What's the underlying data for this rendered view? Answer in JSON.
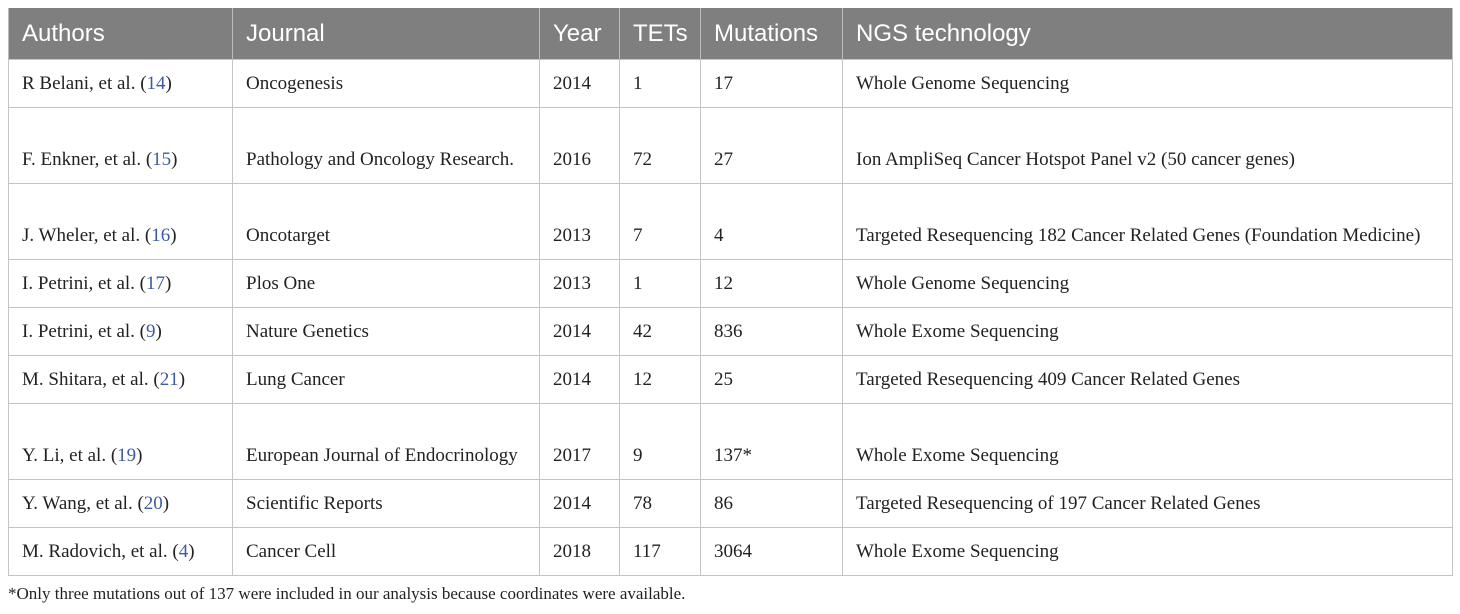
{
  "table": {
    "headers": [
      "Authors",
      "Journal",
      "Year",
      "TETs",
      "Mutations",
      "NGS technology"
    ],
    "rows": [
      {
        "author": "R Belani, et al.",
        "ref": "14",
        "journal": "Oncogenesis",
        "year": "2014",
        "tets": "1",
        "mutations": "17",
        "ngs": "Whole Genome Sequencing"
      },
      {
        "author": "F. Enkner, et al.",
        "ref": "15",
        "journal": "Pathology and Oncology Research.",
        "year": "2016",
        "tets": "72",
        "mutations": "27",
        "ngs": "Ion AmpliSeq Cancer Hotspot Panel v2 (50 cancer genes)"
      },
      {
        "author": "J. Wheler, et al.",
        "ref": "16",
        "journal": "Oncotarget",
        "year": "2013",
        "tets": "7",
        "mutations": "4",
        "ngs": "Targeted Resequencing 182 Cancer Related Genes (Foundation Medicine)"
      },
      {
        "author": "I. Petrini, et al.",
        "ref": "17",
        "journal": "Plos One",
        "year": "2013",
        "tets": "1",
        "mutations": "12",
        "ngs": "Whole Genome Sequencing"
      },
      {
        "author": "I. Petrini, et al.",
        "ref": "9",
        "journal": "Nature Genetics",
        "year": "2014",
        "tets": "42",
        "mutations": "836",
        "ngs": "Whole Exome Sequencing"
      },
      {
        "author": "M. Shitara, et al.",
        "ref": "21",
        "journal": "Lung Cancer",
        "year": "2014",
        "tets": "12",
        "mutations": "25",
        "ngs": "Targeted Resequencing 409 Cancer Related Genes"
      },
      {
        "author": "Y. Li, et al.",
        "ref": "19",
        "journal": "European Journal of Endocrinology",
        "year": "2017",
        "tets": "9",
        "mutations": "137*",
        "ngs": "Whole Exome Sequencing"
      },
      {
        "author": "Y. Wang, et al.",
        "ref": "20",
        "journal": "Scientific Reports",
        "year": "2014",
        "tets": "78",
        "mutations": "86",
        "ngs": "Targeted Resequencing of 197 Cancer Related Genes"
      },
      {
        "author": "M. Radovich, et al.",
        "ref": "4",
        "journal": "Cancer Cell",
        "year": "2018",
        "tets": "117",
        "mutations": "3064",
        "ngs": "Whole Exome Sequencing"
      }
    ]
  },
  "footnote": "*Only three mutations out of 137 were included in our analysis because coordinates were available.",
  "colors": {
    "header_bg": "#7f7f7f",
    "header_text": "#ffffff",
    "ref_link": "#3b5aa8",
    "border": "#c4c4c4"
  }
}
